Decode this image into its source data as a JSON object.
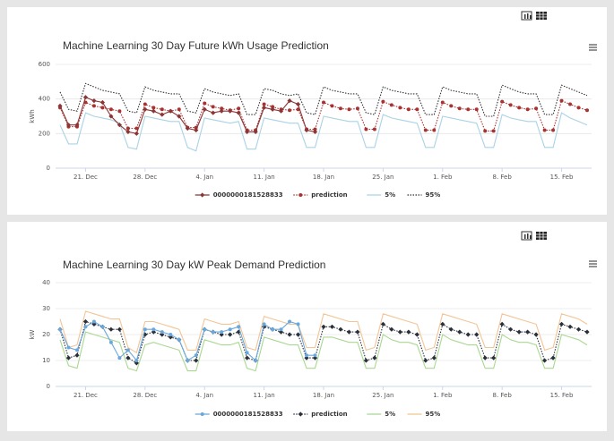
{
  "chart_data": [
    {
      "type": "line",
      "title": "Machine Learning 30 Day Future kWh Usage Prediction",
      "y_label": "kWh",
      "ylim": [
        0,
        600
      ],
      "yticks": [
        0,
        200,
        400,
        600
      ],
      "grid": true,
      "categories": [
        null,
        null,
        null,
        "21. Dec",
        null,
        null,
        null,
        null,
        null,
        null,
        "28. Dec",
        null,
        null,
        null,
        null,
        null,
        null,
        "4. Jan",
        null,
        null,
        null,
        null,
        null,
        null,
        "11. Jan",
        null,
        null,
        null,
        null,
        null,
        null,
        "18. Jan",
        null,
        null,
        null,
        null,
        null,
        null,
        "25. Jan",
        null,
        null,
        null,
        null,
        null,
        null,
        "1. Feb",
        null,
        null,
        null,
        null,
        null,
        null,
        "8. Feb",
        null,
        null,
        null,
        null,
        null,
        null,
        "15. Feb",
        null,
        null,
        null
      ],
      "series": [
        {
          "name": "0000000181528833",
          "color": "#8b3535",
          "marker": "diamond",
          "dash": "solid",
          "values": [
            360,
            250,
            250,
            410,
            390,
            380,
            300,
            250,
            210,
            200,
            340,
            330,
            310,
            330,
            300,
            230,
            220,
            340,
            320,
            330,
            330,
            320,
            210,
            210,
            350,
            340,
            330,
            390,
            370,
            220,
            210,
            null,
            null,
            null,
            null,
            null,
            null,
            null,
            null,
            null,
            null,
            null,
            null,
            null,
            null,
            null,
            null,
            null,
            null,
            null,
            null,
            null,
            null,
            null,
            null,
            null,
            null,
            null,
            null,
            null,
            null,
            null,
            null
          ]
        },
        {
          "name": "prediction",
          "color": "#a83232",
          "marker": "circle",
          "dash": "dotted",
          "values": [
            350,
            240,
            240,
            380,
            360,
            350,
            340,
            330,
            230,
            230,
            370,
            350,
            340,
            330,
            340,
            235,
            235,
            375,
            355,
            345,
            335,
            345,
            220,
            220,
            370,
            355,
            340,
            335,
            340,
            225,
            225,
            380,
            360,
            345,
            340,
            345,
            225,
            225,
            385,
            365,
            350,
            340,
            340,
            220,
            220,
            380,
            360,
            345,
            340,
            340,
            215,
            215,
            385,
            365,
            350,
            340,
            345,
            220,
            220,
            390,
            370,
            350,
            335
          ]
        },
        {
          "name": "5%",
          "color": "#a9d3e6",
          "marker": "none",
          "dash": "solid",
          "values": [
            250,
            140,
            140,
            320,
            300,
            290,
            280,
            260,
            120,
            110,
            300,
            290,
            280,
            270,
            270,
            120,
            100,
            290,
            280,
            270,
            260,
            270,
            110,
            110,
            290,
            280,
            270,
            260,
            260,
            120,
            120,
            300,
            290,
            280,
            270,
            270,
            120,
            120,
            310,
            290,
            280,
            270,
            260,
            120,
            120,
            300,
            290,
            280,
            270,
            260,
            120,
            120,
            310,
            290,
            280,
            270,
            270,
            120,
            120,
            320,
            290,
            270,
            250
          ]
        },
        {
          "name": "95%",
          "color": "#333333",
          "marker": "none",
          "dash": "dotted",
          "values": [
            440,
            340,
            330,
            490,
            470,
            450,
            440,
            430,
            330,
            320,
            470,
            450,
            440,
            430,
            430,
            330,
            320,
            460,
            440,
            430,
            420,
            430,
            310,
            310,
            460,
            450,
            430,
            420,
            430,
            320,
            310,
            470,
            450,
            440,
            430,
            430,
            320,
            310,
            470,
            450,
            440,
            430,
            430,
            310,
            310,
            470,
            450,
            440,
            430,
            430,
            300,
            300,
            480,
            460,
            440,
            430,
            430,
            310,
            310,
            480,
            460,
            440,
            420
          ]
        }
      ]
    },
    {
      "type": "line",
      "title": "Machine Learning 30 Day kW Peak Demand Prediction",
      "y_label": "kW",
      "ylim": [
        0,
        40
      ],
      "yticks": [
        0,
        10,
        20,
        30,
        40
      ],
      "grid": true,
      "categories": [
        null,
        null,
        null,
        "21. Dec",
        null,
        null,
        null,
        null,
        null,
        null,
        "28. Dec",
        null,
        null,
        null,
        null,
        null,
        null,
        "4. Jan",
        null,
        null,
        null,
        null,
        null,
        null,
        "11. Jan",
        null,
        null,
        null,
        null,
        null,
        null,
        "18. Jan",
        null,
        null,
        null,
        null,
        null,
        null,
        "25. Jan",
        null,
        null,
        null,
        null,
        null,
        null,
        "1. Feb",
        null,
        null,
        null,
        null,
        null,
        null,
        "8. Feb",
        null,
        null,
        null,
        null,
        null,
        null,
        "15. Feb",
        null,
        null,
        null
      ],
      "series": [
        {
          "name": "0000000181528833",
          "color": "#6aa8dc",
          "marker": "circle",
          "dash": "solid",
          "values": [
            22,
            15,
            14,
            23,
            25,
            23,
            17,
            11,
            14,
            10,
            22,
            22,
            21,
            20,
            18,
            10,
            12,
            22,
            21,
            21,
            22,
            23,
            13,
            10,
            24,
            22,
            22,
            25,
            24,
            12,
            12,
            null,
            null,
            null,
            null,
            null,
            null,
            null,
            null,
            null,
            null,
            null,
            null,
            null,
            null,
            null,
            null,
            null,
            null,
            null,
            null,
            null,
            null,
            null,
            null,
            null,
            null,
            null,
            null,
            null,
            null,
            null,
            null
          ]
        },
        {
          "name": "prediction",
          "color": "#2a2f3a",
          "marker": "diamond",
          "dash": "dotted",
          "values": [
            22,
            11,
            12,
            25,
            24,
            23,
            22,
            22,
            11,
            9,
            20,
            21,
            20,
            19,
            18,
            10,
            10,
            22,
            21,
            20,
            20,
            21,
            11,
            10,
            23,
            22,
            21,
            20,
            20,
            11,
            11,
            23,
            23,
            22,
            21,
            21,
            10,
            11,
            24,
            22,
            21,
            21,
            20,
            10,
            11,
            24,
            22,
            21,
            20,
            20,
            11,
            11,
            24,
            22,
            21,
            21,
            20,
            10,
            11,
            24,
            23,
            22,
            21
          ]
        },
        {
          "name": "5%",
          "color": "#a9d890",
          "marker": "none",
          "dash": "solid",
          "values": [
            18,
            8,
            7,
            21,
            20,
            19,
            18,
            17,
            7,
            6,
            16,
            17,
            16,
            15,
            14,
            6,
            6,
            18,
            17,
            16,
            16,
            17,
            7,
            6,
            19,
            18,
            17,
            16,
            16,
            7,
            7,
            19,
            19,
            18,
            17,
            17,
            7,
            7,
            20,
            18,
            17,
            17,
            16,
            7,
            7,
            20,
            18,
            17,
            16,
            16,
            7,
            7,
            20,
            18,
            17,
            17,
            16,
            7,
            7,
            20,
            19,
            18,
            16
          ]
        },
        {
          "name": "95%",
          "color": "#f2c596",
          "marker": "none",
          "dash": "solid",
          "values": [
            26,
            15,
            16,
            29,
            28,
            27,
            26,
            26,
            15,
            13,
            25,
            25,
            24,
            23,
            22,
            14,
            14,
            26,
            25,
            24,
            24,
            25,
            15,
            14,
            27,
            26,
            25,
            24,
            24,
            15,
            15,
            28,
            27,
            26,
            25,
            25,
            14,
            15,
            28,
            27,
            26,
            25,
            24,
            14,
            15,
            28,
            27,
            26,
            25,
            24,
            15,
            15,
            28,
            27,
            26,
            25,
            24,
            14,
            15,
            28,
            27,
            26,
            24
          ]
        }
      ]
    }
  ]
}
